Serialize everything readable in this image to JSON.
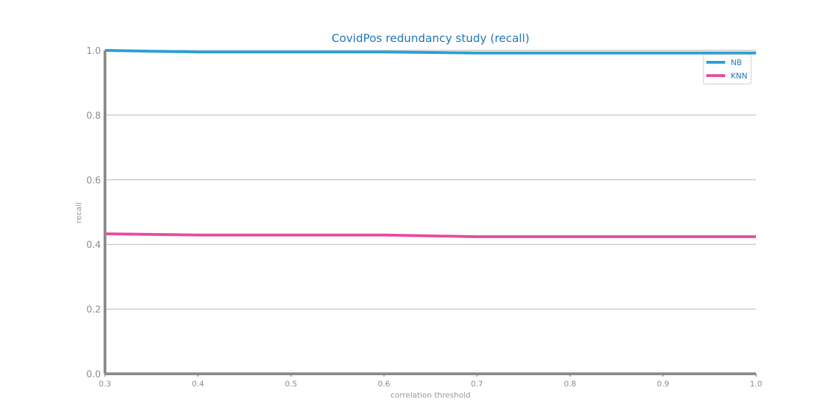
{
  "chart_data": {
    "type": "line",
    "title": "CovidPos redundancy study (recall)",
    "xlabel": "correlation threshold",
    "ylabel": "recall",
    "xlim": [
      0.3,
      1.0
    ],
    "ylim": [
      0.0,
      1.0
    ],
    "x": [
      0.3,
      0.4,
      0.5,
      0.6,
      0.7,
      0.8,
      0.9,
      1.0
    ],
    "x_ticks": [
      "0.3",
      "0.4",
      "0.5",
      "0.6",
      "0.7",
      "0.8",
      "0.9",
      "1.0"
    ],
    "y_ticks": [
      "0.0",
      "0.2",
      "0.4",
      "0.6",
      "0.8",
      "1.0"
    ],
    "grid": "horizontal",
    "legend_position": "top-right",
    "series": [
      {
        "name": "NB",
        "color": "#2a9fd6",
        "values": [
          1.0,
          0.995,
          0.995,
          0.995,
          0.992,
          0.992,
          0.992,
          0.992
        ]
      },
      {
        "name": "KNN",
        "color": "#e84a9e",
        "values": [
          0.433,
          0.429,
          0.429,
          0.429,
          0.424,
          0.424,
          0.424,
          0.424
        ]
      }
    ]
  }
}
